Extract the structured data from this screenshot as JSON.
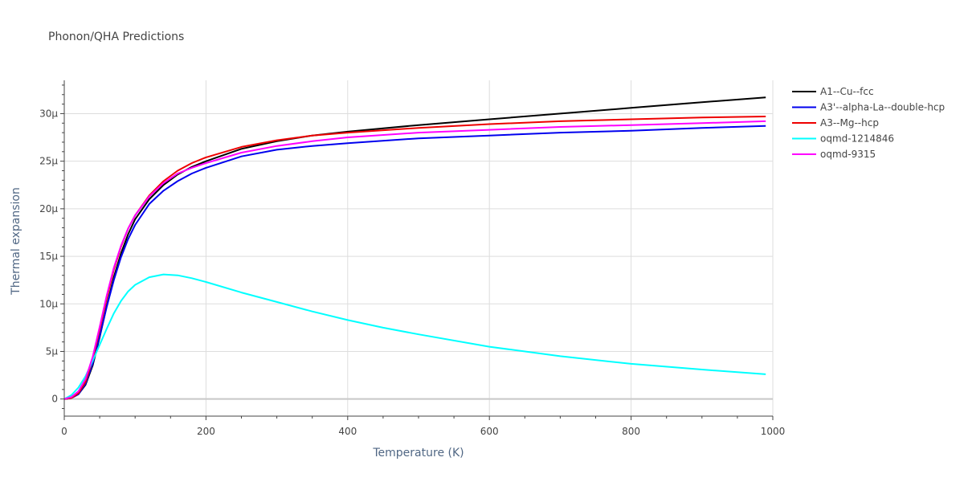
{
  "chart_data": {
    "type": "line",
    "title": "Phonon/QHA Predictions",
    "xlabel": "Temperature (K)",
    "ylabel": "Thermal expansion",
    "xlim": [
      0,
      1000
    ],
    "ylim": [
      -1.8e-06,
      3.35e-05
    ],
    "x_ticks": [
      0,
      200,
      400,
      600,
      800,
      1000
    ],
    "x_tick_labels": [
      "0",
      "200",
      "400",
      "600",
      "800",
      "1000"
    ],
    "y_ticks": [
      0,
      5e-06,
      1e-05,
      1.5e-05,
      2e-05,
      2.5e-05,
      3e-05
    ],
    "y_tick_labels": [
      "0",
      "5µ",
      "10µ",
      "15µ",
      "20µ",
      "25µ",
      "30µ"
    ],
    "grid": true,
    "legend_position": "top-right",
    "series": [
      {
        "name": "A1--Cu--fcc",
        "color": "#000000",
        "x": [
          0,
          10,
          20,
          30,
          40,
          50,
          60,
          70,
          80,
          90,
          100,
          120,
          140,
          160,
          180,
          200,
          250,
          300,
          350,
          400,
          500,
          600,
          700,
          800,
          900,
          990
        ],
        "y": [
          0,
          1e-07,
          5e-07,
          1.5e-06,
          3.5e-06,
          6.5e-06,
          9.8e-06,
          1.28e-05,
          1.53e-05,
          1.73e-05,
          1.89e-05,
          2.1e-05,
          2.25e-05,
          2.36e-05,
          2.44e-05,
          2.5e-05,
          2.63e-05,
          2.71e-05,
          2.77e-05,
          2.81e-05,
          2.88e-05,
          2.94e-05,
          3e-05,
          3.06e-05,
          3.12e-05,
          3.17e-05
        ]
      },
      {
        "name": "A3'--alpha-La--double-hcp",
        "color": "#0000ee",
        "x": [
          0,
          10,
          20,
          30,
          40,
          50,
          60,
          70,
          80,
          90,
          100,
          120,
          140,
          160,
          180,
          200,
          250,
          300,
          350,
          400,
          500,
          600,
          700,
          800,
          900,
          990
        ],
        "y": [
          0,
          1e-07,
          5e-07,
          1.6e-06,
          3.7e-06,
          6.6e-06,
          9.7e-06,
          1.25e-05,
          1.49e-05,
          1.68e-05,
          1.83e-05,
          2.05e-05,
          2.19e-05,
          2.29e-05,
          2.37e-05,
          2.43e-05,
          2.55e-05,
          2.62e-05,
          2.66e-05,
          2.69e-05,
          2.74e-05,
          2.77e-05,
          2.8e-05,
          2.82e-05,
          2.85e-05,
          2.87e-05
        ]
      },
      {
        "name": "A3--Mg--hcp",
        "color": "#ee0000",
        "x": [
          0,
          10,
          20,
          30,
          40,
          50,
          60,
          70,
          80,
          90,
          100,
          120,
          140,
          160,
          180,
          200,
          250,
          300,
          350,
          400,
          500,
          600,
          700,
          800,
          900,
          990
        ],
        "y": [
          0,
          1e-07,
          6e-07,
          1.8e-06,
          4.1e-06,
          7.3e-06,
          1.06e-05,
          1.36e-05,
          1.6e-05,
          1.79e-05,
          1.93e-05,
          2.14e-05,
          2.29e-05,
          2.4e-05,
          2.48e-05,
          2.54e-05,
          2.65e-05,
          2.72e-05,
          2.77e-05,
          2.8e-05,
          2.85e-05,
          2.89e-05,
          2.92e-05,
          2.94e-05,
          2.96e-05,
          2.97e-05
        ]
      },
      {
        "name": "oqmd-1214846",
        "color": "#00ffff",
        "x": [
          0,
          10,
          20,
          30,
          40,
          50,
          60,
          70,
          80,
          90,
          100,
          120,
          140,
          160,
          180,
          200,
          250,
          300,
          350,
          400,
          450,
          500,
          600,
          700,
          800,
          900,
          990
        ],
        "y": [
          0,
          4e-07,
          1.2e-06,
          2.4e-06,
          4e-06,
          5.7e-06,
          7.4e-06,
          9e-06,
          1.03e-05,
          1.13e-05,
          1.2e-05,
          1.28e-05,
          1.31e-05,
          1.3e-05,
          1.27e-05,
          1.23e-05,
          1.12e-05,
          1.02e-05,
          9.2e-06,
          8.3e-06,
          7.5e-06,
          6.8e-06,
          5.5e-06,
          4.5e-06,
          3.7e-06,
          3.1e-06,
          2.6e-06
        ]
      },
      {
        "name": "oqmd-9315",
        "color": "#ff00ff",
        "x": [
          0,
          10,
          20,
          30,
          40,
          50,
          60,
          70,
          80,
          90,
          100,
          120,
          140,
          160,
          180,
          200,
          250,
          300,
          350,
          400,
          500,
          600,
          700,
          800,
          900,
          990
        ],
        "y": [
          0,
          2e-07,
          8e-07,
          2.1e-06,
          4.4e-06,
          7.6e-06,
          1.09e-05,
          1.38e-05,
          1.61e-05,
          1.79e-05,
          1.93e-05,
          2.13e-05,
          2.27e-05,
          2.37e-05,
          2.43e-05,
          2.48e-05,
          2.59e-05,
          2.66e-05,
          2.71e-05,
          2.75e-05,
          2.8e-05,
          2.83e-05,
          2.86e-05,
          2.88e-05,
          2.9e-05,
          2.92e-05
        ]
      }
    ]
  }
}
